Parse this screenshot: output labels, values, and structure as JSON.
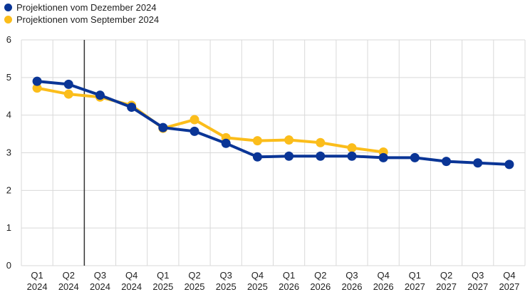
{
  "legend": {
    "dec": "Projektionen vom Dezember 2024",
    "sep": "Projektionen vom September 2024"
  },
  "colors": {
    "dec": "#0a3596",
    "sep": "#fbbd1b",
    "grid": "#d9d9d9",
    "marker_line": "#333333"
  },
  "chart_data": {
    "type": "line",
    "title": "",
    "xlabel": "",
    "ylabel": "",
    "ylim": [
      0,
      6
    ],
    "y_ticks": [
      "0",
      "1",
      "2",
      "3",
      "4",
      "5",
      "6"
    ],
    "grid": true,
    "legend_position": "top-left",
    "categories": [
      [
        "Q1",
        "2024"
      ],
      [
        "Q2",
        "2024"
      ],
      [
        "Q3",
        "2024"
      ],
      [
        "Q4",
        "2024"
      ],
      [
        "Q1",
        "2025"
      ],
      [
        "Q2",
        "2025"
      ],
      [
        "Q3",
        "2025"
      ],
      [
        "Q4",
        "2025"
      ],
      [
        "Q1",
        "2026"
      ],
      [
        "Q2",
        "2026"
      ],
      [
        "Q3",
        "2026"
      ],
      [
        "Q4",
        "2026"
      ],
      [
        "Q1",
        "2027"
      ],
      [
        "Q2",
        "2027"
      ],
      [
        "Q3",
        "2027"
      ],
      [
        "Q4",
        "2027"
      ]
    ],
    "vertical_marker_between": [
      "Q2 2024",
      "Q3 2024"
    ],
    "series": [
      {
        "key": "sep",
        "name": "Projektionen vom September 2024",
        "values": [
          4.72,
          4.56,
          4.48,
          4.26,
          3.65,
          3.88,
          3.4,
          3.32,
          3.34,
          3.27,
          3.13,
          3.02,
          null,
          null,
          null,
          null
        ]
      },
      {
        "key": "dec",
        "name": "Projektionen vom Dezember 2024",
        "values": [
          4.9,
          4.82,
          4.53,
          4.21,
          3.67,
          3.57,
          3.25,
          2.89,
          2.91,
          2.91,
          2.91,
          2.87,
          2.87,
          2.77,
          2.73,
          2.69
        ]
      }
    ]
  }
}
